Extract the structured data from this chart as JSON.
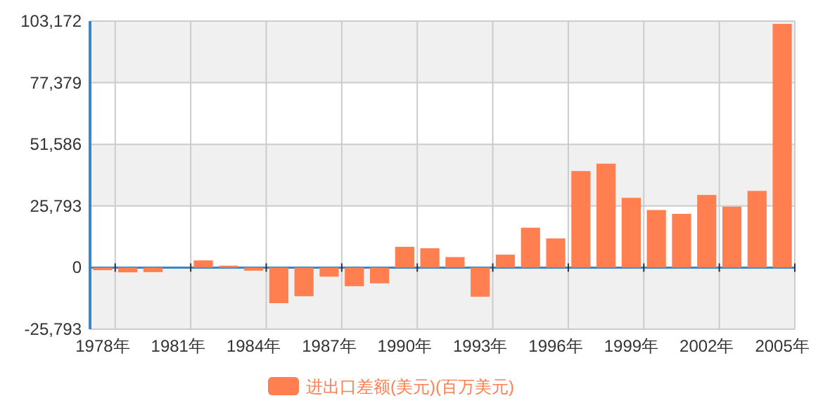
{
  "chart_data": {
    "type": "bar",
    "categories": [
      "1978年",
      null,
      null,
      "1981年",
      null,
      null,
      "1984年",
      null,
      null,
      "1987年",
      null,
      null,
      "1990年",
      null,
      null,
      "1993年",
      null,
      null,
      "1996年",
      null,
      null,
      "1999年",
      null,
      null,
      "2002年",
      null,
      null,
      "2005年"
    ],
    "series": [
      {
        "name": "进出口差额(美元)(百万美元)",
        "color": "#ff7f50",
        "values": [
          -1100,
          -2000,
          -1900,
          0,
          3000,
          800,
          -1300,
          -14900,
          -12000,
          -3800,
          -7800,
          -6600,
          8700,
          8100,
          4400,
          -12200,
          5400,
          16700,
          12200,
          40400,
          43500,
          29200,
          24100,
          22500,
          30400,
          25500,
          32100,
          102000
        ]
      }
    ],
    "ylim": [
      -25793,
      103172
    ],
    "yticks": [
      {
        "value": -25793,
        "label": "-25,793"
      },
      0,
      {
        "value": 25793,
        "label": "25,793"
      },
      {
        "value": 51586,
        "label": "51,586"
      },
      {
        "value": 77379,
        "label": "77,379"
      },
      {
        "value": 103172,
        "label": "103,172"
      }
    ],
    "ref_lines": [
      {
        "axis": "y",
        "value": 0,
        "color": "#3a87c8"
      }
    ],
    "grid": true,
    "legend": "bottom"
  }
}
